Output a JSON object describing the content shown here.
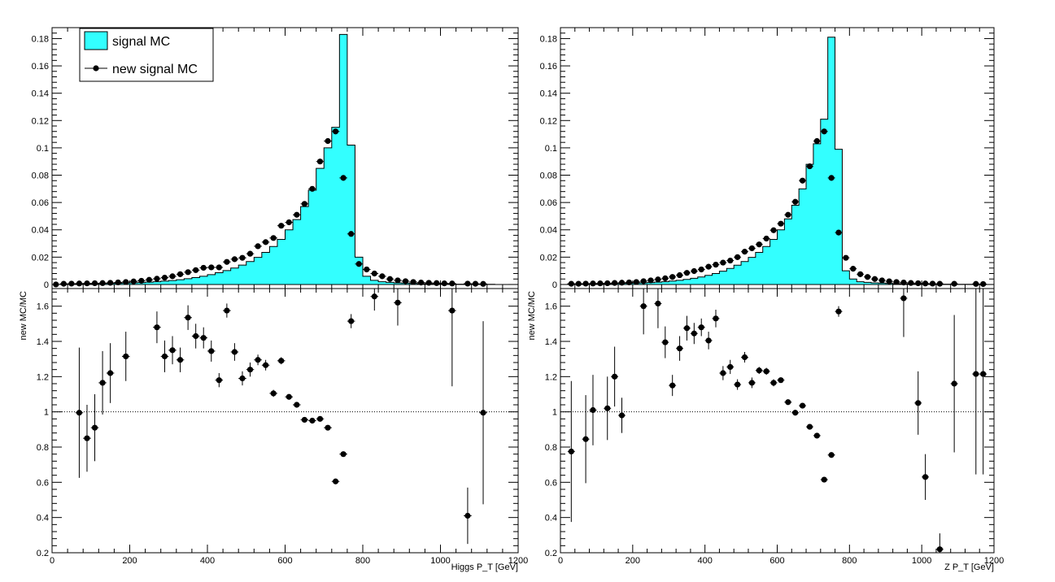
{
  "legend": {
    "entries": [
      {
        "label": "signal MC",
        "color": "#33ffff",
        "kind": "fill"
      },
      {
        "label": "new signal MC",
        "color": "#000000",
        "kind": "marker"
      }
    ]
  },
  "chart_data": [
    {
      "type": "bar",
      "panel": "left-top",
      "x_edges_start": 0,
      "bin_width": 20,
      "xlim": [
        0,
        1200
      ],
      "ylim": [
        -0.003,
        0.188
      ],
      "y_ticks": [
        0,
        0.02,
        0.04,
        0.06,
        0.08,
        0.1,
        0.12,
        0.14,
        0.16,
        0.18
      ],
      "y_tick_labels": [
        "0",
        "0.02",
        "0.04",
        "0.06",
        "0.08",
        "0.1",
        "0.12",
        "0.14",
        "0.16",
        "0.18"
      ],
      "series": [
        {
          "name": "signal MC",
          "values": [
            0,
            0,
            0,
            0.0005,
            0.0005,
            0.0006,
            0.0007,
            0.0008,
            0.0009,
            0.001,
            0.0012,
            0.0014,
            0.0017,
            0.002,
            0.0024,
            0.0029,
            0.0035,
            0.0042,
            0.005,
            0.006,
            0.0072,
            0.0086,
            0.0102,
            0.012,
            0.0142,
            0.0168,
            0.0198,
            0.0235,
            0.0278,
            0.033,
            0.04,
            0.0475,
            0.057,
            0.069,
            0.085,
            0.1,
            0.115,
            0.183,
            0.102,
            0.02,
            0.006,
            0.003,
            0.002,
            0.0015,
            0.0012,
            0.001,
            0.0008,
            0.0006,
            0.0005,
            0.0004,
            0.0003,
            0.0003,
            0.0002,
            0.0002,
            0.0001,
            0.0001,
            0.0001,
            0,
            0,
            0
          ]
        },
        {
          "name": "new signal MC",
          "x": [
            10,
            30,
            50,
            70,
            90,
            110,
            130,
            150,
            170,
            190,
            210,
            230,
            250,
            270,
            290,
            310,
            330,
            350,
            370,
            390,
            410,
            430,
            450,
            470,
            490,
            510,
            530,
            550,
            570,
            590,
            610,
            630,
            650,
            670,
            690,
            710,
            730,
            750,
            770,
            790,
            810,
            830,
            850,
            870,
            890,
            910,
            930,
            950,
            970,
            990,
            1010,
            1030,
            1070,
            1090,
            1110
          ],
          "values": [
            0,
            0.0005,
            0.0006,
            0.0007,
            0.0008,
            0.0009,
            0.001,
            0.0012,
            0.0015,
            0.0018,
            0.0022,
            0.0027,
            0.0034,
            0.0042,
            0.005,
            0.006,
            0.0075,
            0.009,
            0.0105,
            0.0122,
            0.0125,
            0.0125,
            0.0165,
            0.0185,
            0.0195,
            0.0225,
            0.028,
            0.031,
            0.034,
            0.043,
            0.0455,
            0.051,
            0.059,
            0.07,
            0.09,
            0.105,
            0.112,
            0.078,
            0.037,
            0.015,
            0.011,
            0.008,
            0.006,
            0.004,
            0.003,
            0.0024,
            0.0018,
            0.0014,
            0.0012,
            0.001,
            0.0008,
            0.0007,
            0.0006,
            0.0005,
            0.0004
          ]
        }
      ]
    },
    {
      "type": "scatter",
      "panel": "left-bottom",
      "xlabel": "Higgs P_T [GeV]",
      "ylabel": "new MC/MC",
      "xlim": [
        0,
        1200
      ],
      "ylim": [
        0.2,
        1.7
      ],
      "x_ticks": [
        0,
        200,
        400,
        600,
        800,
        1000,
        1200
      ],
      "y_ticks": [
        0.2,
        0.4,
        0.6,
        0.8,
        1,
        1.2,
        1.4,
        1.6
      ],
      "y_tick_labels": [
        "0.2",
        "0.4",
        "0.6",
        "0.8",
        "1",
        "1.2",
        "1.4",
        "1.6"
      ],
      "reference_line": 1,
      "x": [
        70,
        90,
        110,
        130,
        150,
        190,
        270,
        290,
        310,
        330,
        350,
        370,
        390,
        410,
        430,
        450,
        470,
        490,
        510,
        530,
        550,
        570,
        590,
        610,
        630,
        650,
        670,
        690,
        710,
        730,
        750,
        770,
        830,
        890,
        1030,
        1070,
        1110
      ],
      "values": [
        0.995,
        0.85,
        0.91,
        1.165,
        1.22,
        1.315,
        1.48,
        1.315,
        1.35,
        1.295,
        1.535,
        1.43,
        1.42,
        1.345,
        1.18,
        1.575,
        1.34,
        1.19,
        1.24,
        1.295,
        1.265,
        1.105,
        1.29,
        1.085,
        1.04,
        0.955,
        0.95,
        0.96,
        0.91,
        0.605,
        0.76,
        1.515,
        1.655,
        1.62,
        1.575,
        0.41,
        0.995
      ],
      "errors": [
        0.37,
        0.19,
        0.19,
        0.18,
        0.17,
        0.14,
        0.09,
        0.09,
        0.08,
        0.07,
        0.07,
        0.07,
        0.06,
        0.06,
        0.04,
        0.04,
        0.05,
        0.04,
        0.04,
        0.03,
        0.03,
        0.02,
        0.02,
        0.015,
        0.015,
        0.01,
        0.01,
        0.01,
        0.01,
        0.01,
        0.01,
        0.04,
        0.08,
        0.13,
        0.43,
        0.16,
        0.52
      ]
    },
    {
      "type": "bar",
      "panel": "right-top",
      "x_edges_start": 0,
      "bin_width": 20,
      "xlim": [
        0,
        1200
      ],
      "ylim": [
        -0.003,
        0.188
      ],
      "y_ticks": [
        0,
        0.02,
        0.04,
        0.06,
        0.08,
        0.1,
        0.12,
        0.14,
        0.16,
        0.18
      ],
      "y_tick_labels": [
        "0",
        "0.02",
        "0.04",
        "0.06",
        "0.08",
        "0.1",
        "0.12",
        "0.14",
        "0.16",
        "0.18"
      ],
      "series": [
        {
          "name": "signal MC",
          "values": [
            0,
            0.0004,
            0.0004,
            0.0005,
            0.0005,
            0.0006,
            0.0006,
            0.0007,
            0.0008,
            0.0009,
            0.001,
            0.0012,
            0.0014,
            0.0017,
            0.002,
            0.0025,
            0.003,
            0.0037,
            0.0045,
            0.0055,
            0.0067,
            0.008,
            0.0097,
            0.0117,
            0.0141,
            0.0168,
            0.0198,
            0.0235,
            0.0278,
            0.033,
            0.04,
            0.048,
            0.058,
            0.07,
            0.088,
            0.103,
            0.121,
            0.181,
            0.099,
            0.01,
            0.004,
            0.002,
            0.0015,
            0.0012,
            0.001,
            0.0008,
            0.0006,
            0.0005,
            0.0004,
            0.0003,
            0.0003,
            0.0002,
            0.0002,
            0.0002,
            0.0001,
            0.0001,
            0.0001,
            0,
            0,
            0
          ]
        },
        {
          "name": "new signal MC",
          "x": [
            30,
            50,
            70,
            90,
            110,
            130,
            150,
            170,
            190,
            210,
            230,
            250,
            270,
            290,
            310,
            330,
            350,
            370,
            390,
            410,
            430,
            450,
            470,
            490,
            510,
            530,
            550,
            570,
            590,
            610,
            630,
            650,
            670,
            690,
            710,
            730,
            750,
            770,
            790,
            810,
            830,
            850,
            870,
            890,
            910,
            930,
            950,
            970,
            990,
            1010,
            1030,
            1050,
            1090,
            1150,
            1170
          ],
          "values": [
            0.0005,
            0.0005,
            0.0006,
            0.0007,
            0.0008,
            0.0009,
            0.0011,
            0.0013,
            0.0015,
            0.0018,
            0.0024,
            0.003,
            0.0037,
            0.0045,
            0.0055,
            0.0068,
            0.0085,
            0.0098,
            0.011,
            0.013,
            0.0145,
            0.016,
            0.0175,
            0.02,
            0.024,
            0.0265,
            0.0293,
            0.0336,
            0.0397,
            0.0445,
            0.051,
            0.0605,
            0.076,
            0.0865,
            0.105,
            0.112,
            0.078,
            0.038,
            0.0195,
            0.0115,
            0.0075,
            0.0055,
            0.004,
            0.003,
            0.0023,
            0.0018,
            0.0014,
            0.0011,
            0.0009,
            0.0007,
            0.0006,
            0.0005,
            0.0005,
            0.0004,
            0.0003
          ]
        }
      ]
    },
    {
      "type": "scatter",
      "panel": "right-bottom",
      "xlabel": "Z P_T [GeV]",
      "ylabel": "new MC/MC",
      "xlim": [
        0,
        1200
      ],
      "ylim": [
        0.2,
        1.7
      ],
      "x_ticks": [
        0,
        200,
        400,
        600,
        800,
        1000,
        1200
      ],
      "y_ticks": [
        0.2,
        0.4,
        0.6,
        0.8,
        1,
        1.2,
        1.4,
        1.6
      ],
      "y_tick_labels": [
        "0.2",
        "0.4",
        "0.6",
        "0.8",
        "1",
        "1.2",
        "1.4",
        "1.6"
      ],
      "reference_line": 1,
      "x": [
        30,
        70,
        90,
        130,
        150,
        170,
        230,
        270,
        290,
        310,
        330,
        350,
        370,
        390,
        410,
        430,
        450,
        470,
        490,
        510,
        530,
        550,
        570,
        590,
        610,
        630,
        650,
        670,
        690,
        710,
        730,
        750,
        770,
        950,
        990,
        1010,
        1050,
        1090,
        1150,
        1170
      ],
      "values": [
        0.775,
        0.845,
        1.01,
        1.02,
        1.2,
        0.98,
        1.6,
        1.615,
        1.395,
        1.15,
        1.36,
        1.475,
        1.445,
        1.48,
        1.405,
        1.53,
        1.22,
        1.255,
        1.155,
        1.31,
        1.165,
        1.235,
        1.23,
        1.165,
        1.18,
        1.055,
        0.995,
        1.035,
        0.915,
        0.865,
        0.615,
        0.755,
        1.57,
        1.645,
        1.05,
        0.63,
        0.22,
        1.16,
        1.215,
        1.215
      ],
      "errors": [
        0.4,
        0.25,
        0.2,
        0.18,
        0.17,
        0.1,
        0.16,
        0.14,
        0.09,
        0.06,
        0.07,
        0.07,
        0.06,
        0.05,
        0.05,
        0.05,
        0.04,
        0.04,
        0.03,
        0.03,
        0.03,
        0.02,
        0.02,
        0.02,
        0.015,
        0.015,
        0.01,
        0.01,
        0.01,
        0.01,
        0.01,
        0.01,
        0.03,
        0.22,
        0.18,
        0.13,
        0.09,
        0.39,
        0.57,
        0.57
      ]
    }
  ]
}
